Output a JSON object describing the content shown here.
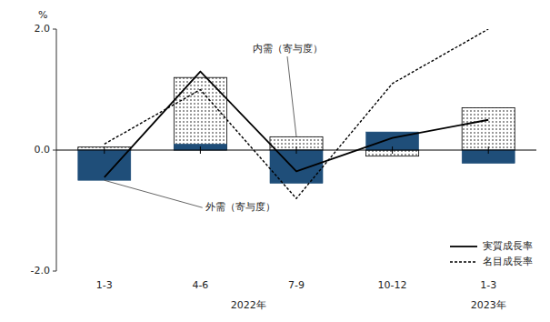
{
  "chart_data": {
    "type": "bar",
    "categories": [
      "1-3",
      "4-6",
      "7-9",
      "10-12",
      "1-3"
    ],
    "category_groups": [
      {
        "label": "2022年",
        "count": 4
      },
      {
        "label": "2023年",
        "count": 1
      }
    ],
    "series": [
      {
        "name": "内需（寄与度）",
        "type": "bar",
        "color": "#000000",
        "line_style": "dotted",
        "values": [
          0.05,
          1.2,
          0.22,
          -0.1,
          0.7
        ]
      },
      {
        "name": "外需（寄与度）",
        "type": "bar",
        "color": "#1f4e79",
        "values": [
          -0.5,
          0.1,
          -0.55,
          0.3,
          -0.22
        ]
      },
      {
        "name": "実質成長率",
        "type": "line",
        "color": "#000000",
        "line_style": "solid",
        "values": [
          -0.45,
          1.3,
          -0.35,
          0.2,
          0.5
        ]
      },
      {
        "name": "名目成長率",
        "type": "line",
        "color": "#000000",
        "line_style": "dotted",
        "values": [
          0.1,
          1.0,
          -0.8,
          1.1,
          2.0
        ]
      }
    ],
    "ylabel": "%",
    "ylim": [
      -2.0,
      2.0
    ],
    "yticks": [
      {
        "value": -2.0,
        "label": "-2.0"
      },
      {
        "value": 0.0,
        "label": "0.0"
      },
      {
        "value": 2.0,
        "label": "2.0"
      }
    ],
    "grid": false,
    "legend": "lower right"
  }
}
